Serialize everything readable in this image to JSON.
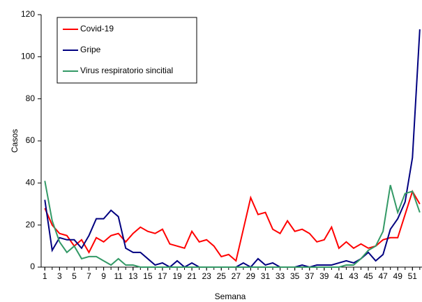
{
  "chart_data": {
    "type": "line",
    "x_label": "Semana",
    "y_label": "Casos",
    "x": [
      1,
      2,
      3,
      4,
      5,
      6,
      7,
      8,
      9,
      10,
      11,
      12,
      13,
      14,
      15,
      16,
      17,
      18,
      19,
      20,
      21,
      22,
      23,
      24,
      25,
      26,
      27,
      28,
      29,
      30,
      31,
      32,
      33,
      34,
      35,
      36,
      37,
      38,
      39,
      40,
      41,
      42,
      43,
      44,
      45,
      46,
      47,
      48,
      49,
      50,
      51,
      52
    ],
    "xlim": [
      0.5,
      52.3
    ],
    "xticks": [
      1,
      3,
      5,
      7,
      9,
      11,
      13,
      15,
      17,
      19,
      21,
      23,
      25,
      27,
      29,
      31,
      33,
      35,
      37,
      39,
      41,
      43,
      45,
      47,
      49,
      51
    ],
    "ylim": [
      0,
      120
    ],
    "yticks": [
      0,
      20,
      40,
      60,
      80,
      100,
      120
    ],
    "legend": "upper left",
    "series": [
      {
        "name": "Covid-19",
        "color": "#ff0000",
        "values": [
          28,
          20,
          16,
          15,
          10,
          13,
          7,
          14,
          12,
          15,
          16,
          12,
          16,
          19,
          17,
          16,
          18,
          11,
          10,
          9,
          17,
          12,
          13,
          10,
          5,
          6,
          3,
          18,
          33,
          25,
          26,
          18,
          16,
          22,
          17,
          18,
          16,
          12,
          13,
          19,
          9,
          12,
          9,
          11,
          9,
          10,
          13,
          14,
          14,
          25,
          36,
          30
        ]
      },
      {
        "name": "Gripe",
        "color": "#000080",
        "values": [
          32,
          8,
          14,
          13,
          13,
          9,
          15,
          23,
          23,
          27,
          24,
          9,
          7,
          7,
          4,
          1,
          2,
          0,
          3,
          0,
          2,
          0,
          0,
          0,
          0,
          0,
          0,
          2,
          0,
          4,
          1,
          2,
          0,
          0,
          0,
          1,
          0,
          1,
          1,
          1,
          2,
          3,
          2,
          4,
          7,
          3,
          6,
          18,
          23,
          31,
          52,
          113
        ]
      },
      {
        "name": "Virus respiratorio sincitial",
        "color": "#339966",
        "values": [
          41,
          22,
          12,
          7,
          10,
          4,
          5,
          5,
          3,
          1,
          4,
          1,
          1,
          0,
          0,
          0,
          0,
          0,
          0,
          0,
          0,
          0,
          0,
          0,
          0,
          0,
          0,
          0,
          0,
          0,
          0,
          0,
          0,
          0,
          0,
          0,
          0,
          0,
          0,
          0,
          0,
          1,
          1,
          4,
          8,
          10,
          17,
          39,
          26,
          35,
          36,
          26
        ]
      }
    ]
  }
}
